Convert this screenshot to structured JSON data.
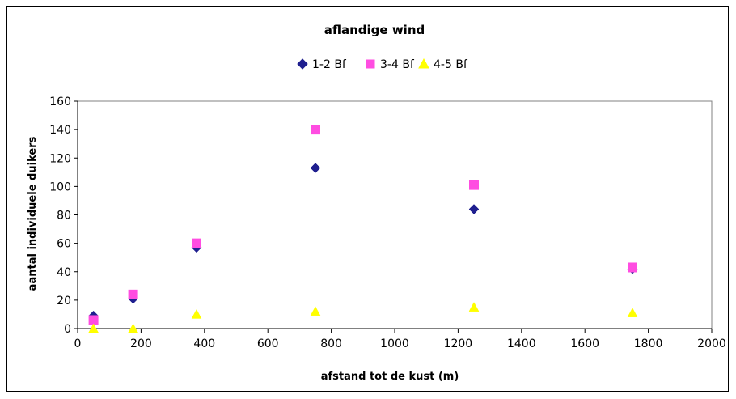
{
  "chart_data": {
    "type": "scatter",
    "title": "aflandige wind",
    "xlabel": "afstand tot de kust (m)",
    "ylabel": "aantal individuele duikers",
    "xlim": [
      0,
      2000
    ],
    "ylim": [
      0,
      160
    ],
    "xticks": [
      "0",
      "200",
      "400",
      "600",
      "800",
      "1000",
      "1200",
      "1400",
      "1600",
      "1800",
      "2000"
    ],
    "yticks": [
      "0",
      "20",
      "40",
      "60",
      "80",
      "100",
      "120",
      "140",
      "160"
    ],
    "grid": false,
    "legend_position": "top-center",
    "series": [
      {
        "name": "1-2 Bf",
        "marker": "diamond",
        "color": "#1F1F8F",
        "x": [
          50,
          175,
          375,
          750,
          1250,
          1750
        ],
        "y": [
          9,
          21,
          57,
          113,
          84,
          42
        ]
      },
      {
        "name": "3-4 Bf",
        "marker": "square",
        "color": "#FF4DE1",
        "x": [
          50,
          175,
          375,
          750,
          1250,
          1750
        ],
        "y": [
          6,
          24,
          60,
          140,
          101,
          43
        ]
      },
      {
        "name": "4-5 Bf",
        "marker": "triangle",
        "color": "#FFFF00",
        "x": [
          50,
          175,
          375,
          750,
          1250,
          1750
        ],
        "y": [
          0,
          0,
          10,
          12,
          15,
          11
        ]
      }
    ]
  }
}
